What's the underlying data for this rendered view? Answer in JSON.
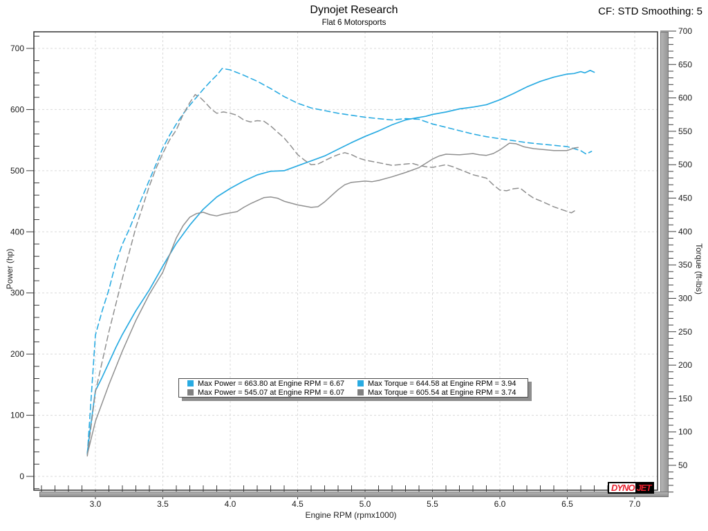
{
  "header": {
    "title": "Dynojet Research",
    "subtitle": "Flat 6 Motorsports",
    "cf_label": "CF: STD Smoothing: 5"
  },
  "logo": {
    "part1": "DYNO",
    "part2": "JET"
  },
  "colors": {
    "run_blue": "#29ABE2",
    "run_gray": "#8f8f8f",
    "gridline": "#d9d9d9",
    "frame": "#333333",
    "tick": "#3a3a3a"
  },
  "legend": {
    "columns": [
      [
        {
          "color": "#29ABE2",
          "label": "Max Power = 663.80 at Engine RPM = 6.67"
        },
        {
          "color": "#808080",
          "label": "Max Power = 545.07 at Engine RPM = 6.07"
        }
      ],
      [
        {
          "color": "#29ABE2",
          "label": "Max Torque = 644.58 at Engine RPM = 3.94"
        },
        {
          "color": "#808080",
          "label": "Max Torque = 605.54 at Engine RPM = 3.74"
        }
      ]
    ]
  },
  "chart_data": {
    "type": "line",
    "title": "Dynojet Research",
    "subtitle": "Flat 6 Motorsports",
    "xlabel": "Engine RPM (rpmx1000)",
    "ylabel_left": "Power (hp)",
    "ylabel_right": "Torque (ft-lbs)",
    "x_major_ticks": [
      3.0,
      3.5,
      4.0,
      4.5,
      5.0,
      5.5,
      6.0,
      6.5,
      7.0
    ],
    "x_minor_step": 0.1,
    "x_axis_range": [
      2.55,
      7.16
    ],
    "power_major_ticks": [
      0,
      100,
      200,
      300,
      400,
      500,
      600,
      700
    ],
    "power_minor_step": 20,
    "torque_major_ticks": [
      50,
      100,
      150,
      200,
      250,
      300,
      350,
      400,
      450,
      500,
      550,
      600,
      650,
      700
    ],
    "torque_minor_step": 10,
    "grid": true,
    "legend_position": "bottom-center",
    "max_annotations": [
      {
        "series": "power-new",
        "value": 663.8,
        "rpm": 6.67
      },
      {
        "series": "power-baseline",
        "value": 545.07,
        "rpm": 6.07
      },
      {
        "series": "torque-new",
        "value": 644.58,
        "rpm": 3.94
      },
      {
        "series": "torque-baseline",
        "value": 605.54,
        "rpm": 3.74
      }
    ],
    "series": [
      {
        "name": "power-new",
        "axis": "power",
        "color": "#29ABE2",
        "dash": null,
        "width": 1.7,
        "points": [
          [
            2.94,
            38
          ],
          [
            2.96,
            75
          ],
          [
            3.0,
            140
          ],
          [
            3.05,
            162
          ],
          [
            3.1,
            186
          ],
          [
            3.15,
            210
          ],
          [
            3.2,
            232
          ],
          [
            3.3,
            271
          ],
          [
            3.4,
            305
          ],
          [
            3.5,
            344
          ],
          [
            3.6,
            381
          ],
          [
            3.7,
            411
          ],
          [
            3.8,
            437
          ],
          [
            3.9,
            457
          ],
          [
            4.0,
            471
          ],
          [
            4.1,
            483
          ],
          [
            4.2,
            493
          ],
          [
            4.3,
            499
          ],
          [
            4.4,
            500
          ],
          [
            4.5,
            508
          ],
          [
            4.6,
            516
          ],
          [
            4.7,
            524
          ],
          [
            4.8,
            535
          ],
          [
            4.9,
            546
          ],
          [
            5.0,
            556
          ],
          [
            5.1,
            565
          ],
          [
            5.2,
            575
          ],
          [
            5.3,
            583
          ],
          [
            5.37,
            586
          ],
          [
            5.45,
            589
          ],
          [
            5.5,
            592
          ],
          [
            5.6,
            596
          ],
          [
            5.7,
            601
          ],
          [
            5.8,
            604
          ],
          [
            5.9,
            608
          ],
          [
            6.0,
            616
          ],
          [
            6.1,
            626
          ],
          [
            6.2,
            637
          ],
          [
            6.3,
            646
          ],
          [
            6.4,
            653
          ],
          [
            6.5,
            658
          ],
          [
            6.55,
            659
          ],
          [
            6.6,
            662
          ],
          [
            6.63,
            660
          ],
          [
            6.67,
            664
          ],
          [
            6.7,
            661
          ]
        ]
      },
      {
        "name": "torque-new",
        "axis": "torque",
        "color": "#29ABE2",
        "dash": "8,5",
        "width": 1.6,
        "points": [
          [
            2.94,
            66
          ],
          [
            3.0,
            245
          ],
          [
            3.05,
            281
          ],
          [
            3.1,
            313
          ],
          [
            3.15,
            352
          ],
          [
            3.2,
            381
          ],
          [
            3.25,
            403
          ],
          [
            3.3,
            428
          ],
          [
            3.35,
            453
          ],
          [
            3.4,
            477
          ],
          [
            3.45,
            501
          ],
          [
            3.5,
            525
          ],
          [
            3.55,
            544
          ],
          [
            3.6,
            561
          ],
          [
            3.65,
            576
          ],
          [
            3.7,
            589
          ],
          [
            3.75,
            601
          ],
          [
            3.8,
            613
          ],
          [
            3.85,
            624
          ],
          [
            3.9,
            634
          ],
          [
            3.94,
            644
          ],
          [
            4.0,
            642
          ],
          [
            4.1,
            634
          ],
          [
            4.2,
            625
          ],
          [
            4.3,
            614
          ],
          [
            4.4,
            602
          ],
          [
            4.5,
            592
          ],
          [
            4.6,
            585
          ],
          [
            4.7,
            581
          ],
          [
            4.8,
            577
          ],
          [
            4.9,
            574
          ],
          [
            5.0,
            571
          ],
          [
            5.1,
            569
          ],
          [
            5.2,
            567
          ],
          [
            5.3,
            569
          ],
          [
            5.4,
            568
          ],
          [
            5.5,
            561
          ],
          [
            5.6,
            556
          ],
          [
            5.7,
            551
          ],
          [
            5.8,
            546
          ],
          [
            5.9,
            542
          ],
          [
            6.0,
            539
          ],
          [
            6.1,
            536
          ],
          [
            6.2,
            533
          ],
          [
            6.3,
            531
          ],
          [
            6.4,
            529
          ],
          [
            6.5,
            527
          ],
          [
            6.55,
            524
          ],
          [
            6.6,
            521
          ],
          [
            6.64,
            516
          ],
          [
            6.68,
            520
          ]
        ]
      },
      {
        "name": "power-baseline",
        "axis": "power",
        "color": "#8f8f8f",
        "dash": null,
        "width": 1.5,
        "points": [
          [
            2.94,
            36
          ],
          [
            3.0,
            90
          ],
          [
            3.1,
            150
          ],
          [
            3.2,
            205
          ],
          [
            3.3,
            255
          ],
          [
            3.4,
            298
          ],
          [
            3.5,
            334
          ],
          [
            3.55,
            362
          ],
          [
            3.6,
            390
          ],
          [
            3.65,
            410
          ],
          [
            3.7,
            424
          ],
          [
            3.75,
            430
          ],
          [
            3.8,
            432
          ],
          [
            3.85,
            428
          ],
          [
            3.9,
            426
          ],
          [
            3.95,
            429
          ],
          [
            4.0,
            431
          ],
          [
            4.05,
            433
          ],
          [
            4.1,
            440
          ],
          [
            4.15,
            446
          ],
          [
            4.2,
            451
          ],
          [
            4.25,
            456
          ],
          [
            4.3,
            457
          ],
          [
            4.35,
            455
          ],
          [
            4.4,
            450
          ],
          [
            4.5,
            444
          ],
          [
            4.6,
            440
          ],
          [
            4.65,
            441
          ],
          [
            4.7,
            449
          ],
          [
            4.75,
            459
          ],
          [
            4.8,
            469
          ],
          [
            4.85,
            477
          ],
          [
            4.9,
            481
          ],
          [
            5.0,
            483
          ],
          [
            5.05,
            482
          ],
          [
            5.1,
            484
          ],
          [
            5.2,
            490
          ],
          [
            5.3,
            497
          ],
          [
            5.4,
            505
          ],
          [
            5.45,
            512
          ],
          [
            5.5,
            519
          ],
          [
            5.55,
            524
          ],
          [
            5.6,
            527
          ],
          [
            5.7,
            526
          ],
          [
            5.8,
            528
          ],
          [
            5.85,
            526
          ],
          [
            5.9,
            525
          ],
          [
            5.95,
            528
          ],
          [
            6.0,
            534
          ],
          [
            6.07,
            545
          ],
          [
            6.12,
            544
          ],
          [
            6.18,
            539
          ],
          [
            6.25,
            536
          ],
          [
            6.3,
            535
          ],
          [
            6.4,
            533
          ],
          [
            6.5,
            533
          ],
          [
            6.55,
            537
          ],
          [
            6.58,
            538
          ]
        ]
      },
      {
        "name": "torque-baseline",
        "axis": "torque",
        "color": "#8f8f8f",
        "dash": "8,5",
        "width": 1.5,
        "points": [
          [
            2.94,
            64
          ],
          [
            3.0,
            160
          ],
          [
            3.1,
            250
          ],
          [
            3.2,
            330
          ],
          [
            3.3,
            406
          ],
          [
            3.4,
            468
          ],
          [
            3.45,
            495
          ],
          [
            3.5,
            517
          ],
          [
            3.55,
            537
          ],
          [
            3.6,
            552
          ],
          [
            3.65,
            575
          ],
          [
            3.7,
            593
          ],
          [
            3.74,
            605
          ],
          [
            3.78,
            600
          ],
          [
            3.82,
            592
          ],
          [
            3.86,
            583
          ],
          [
            3.9,
            577
          ],
          [
            3.95,
            579
          ],
          [
            4.0,
            577
          ],
          [
            4.05,
            574
          ],
          [
            4.1,
            567
          ],
          [
            4.15,
            564
          ],
          [
            4.2,
            566
          ],
          [
            4.25,
            565
          ],
          [
            4.3,
            558
          ],
          [
            4.35,
            549
          ],
          [
            4.4,
            540
          ],
          [
            4.45,
            528
          ],
          [
            4.5,
            515
          ],
          [
            4.55,
            507
          ],
          [
            4.6,
            500
          ],
          [
            4.65,
            501
          ],
          [
            4.7,
            506
          ],
          [
            4.75,
            511
          ],
          [
            4.8,
            515
          ],
          [
            4.85,
            518
          ],
          [
            4.9,
            515
          ],
          [
            4.95,
            510
          ],
          [
            5.0,
            507
          ],
          [
            5.1,
            503
          ],
          [
            5.2,
            499
          ],
          [
            5.25,
            500
          ],
          [
            5.3,
            501
          ],
          [
            5.35,
            502
          ],
          [
            5.4,
            499
          ],
          [
            5.45,
            497
          ],
          [
            5.5,
            496
          ],
          [
            5.55,
            498
          ],
          [
            5.6,
            500
          ],
          [
            5.65,
            497
          ],
          [
            5.7,
            493
          ],
          [
            5.8,
            485
          ],
          [
            5.9,
            480
          ],
          [
            5.95,
            470
          ],
          [
            6.0,
            462
          ],
          [
            6.05,
            461
          ],
          [
            6.1,
            464
          ],
          [
            6.15,
            465
          ],
          [
            6.2,
            457
          ],
          [
            6.25,
            450
          ],
          [
            6.3,
            446
          ],
          [
            6.4,
            437
          ],
          [
            6.5,
            430
          ],
          [
            6.53,
            428
          ],
          [
            6.57,
            433
          ]
        ]
      }
    ]
  }
}
